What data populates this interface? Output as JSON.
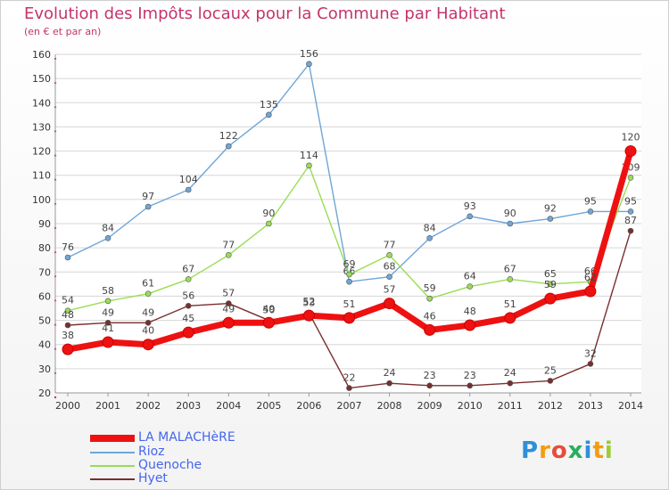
{
  "header": {
    "title": "Evolution des Impôts locaux pour la Commune par Habitant",
    "subtitle": "(en € et par an)"
  },
  "chart_data": {
    "type": "line",
    "title": "Evolution des Impôts locaux pour la Commune par Habitant",
    "subtitle": "(en € et par an)",
    "xlabel": "",
    "ylabel": "",
    "ylim": [
      20,
      160
    ],
    "yticks": [
      20,
      30,
      40,
      50,
      60,
      70,
      80,
      90,
      100,
      110,
      120,
      130,
      140,
      150,
      160
    ],
    "x": [
      "2000",
      "2001",
      "2002",
      "2003",
      "2004",
      "2005",
      "2006",
      "2007",
      "2008",
      "2009",
      "2010",
      "2011",
      "2012",
      "2013",
      "2014"
    ],
    "series": [
      {
        "name": "LA MALACHèRE",
        "color": "#ee1111",
        "values": [
          38,
          41,
          40,
          45,
          49,
          49,
          52,
          51,
          57,
          46,
          48,
          51,
          59,
          62,
          120
        ]
      },
      {
        "name": "Rioz",
        "color": "#6fa6d8",
        "values": [
          76,
          84,
          97,
          104,
          122,
          135,
          156,
          66,
          68,
          84,
          93,
          90,
          92,
          95,
          95
        ]
      },
      {
        "name": "Quenoche",
        "color": "#99dd55",
        "values": [
          54,
          58,
          61,
          67,
          77,
          90,
          114,
          69,
          77,
          59,
          64,
          67,
          65,
          66,
          109
        ]
      },
      {
        "name": "Hyet",
        "color": "#7a2e2e",
        "values": [
          48,
          49,
          49,
          56,
          57,
          50,
          53,
          22,
          24,
          23,
          23,
          24,
          25,
          32,
          87
        ]
      }
    ],
    "legend_position": "bottom-left"
  },
  "logo": {
    "letters": [
      "P",
      "r",
      "o",
      "x",
      "i",
      "t",
      "i"
    ],
    "colors": [
      "#2f8fd8",
      "#f39c12",
      "#e74c3c",
      "#27ae60",
      "#2f8fd8",
      "#f39c12",
      "#9acd32"
    ]
  }
}
